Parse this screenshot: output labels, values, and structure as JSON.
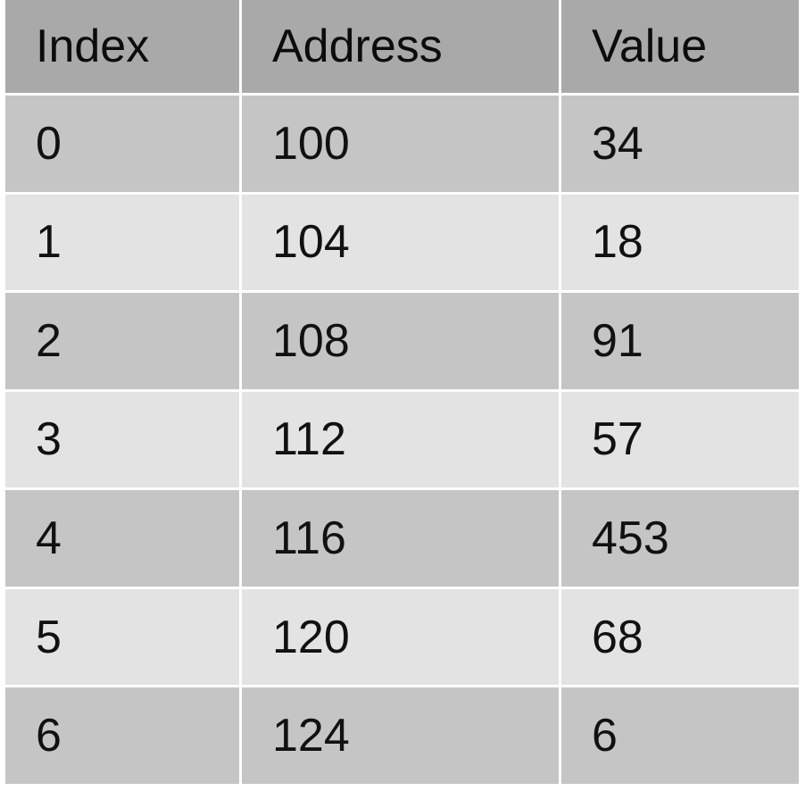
{
  "table": {
    "headers": [
      "Index",
      "Address",
      "Value"
    ],
    "rows": [
      [
        "0",
        "100",
        "34"
      ],
      [
        "1",
        "104",
        "18"
      ],
      [
        "2",
        "108",
        "91"
      ],
      [
        "3",
        "112",
        "57"
      ],
      [
        "4",
        "116",
        "453"
      ],
      [
        "5",
        "120",
        "68"
      ],
      [
        "6",
        "124",
        "6"
      ]
    ],
    "colors": {
      "header_bg": "#a9a9a9",
      "row_dark_bg": "#c5c5c5",
      "row_light_bg": "#e3e3e3",
      "text": "#111111"
    }
  }
}
